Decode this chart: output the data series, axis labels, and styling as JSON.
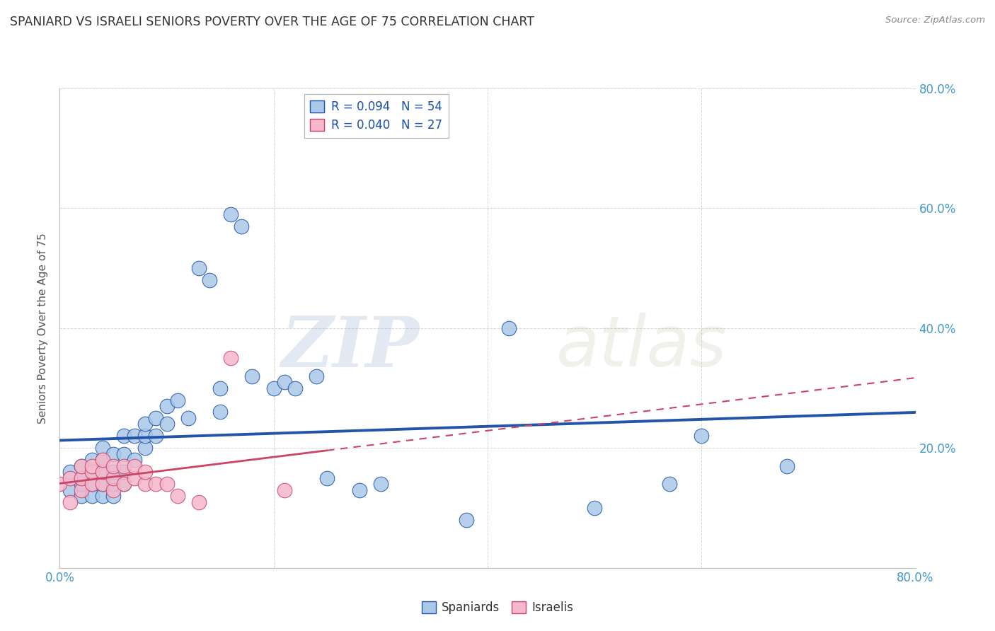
{
  "title": "SPANIARD VS ISRAELI SENIORS POVERTY OVER THE AGE OF 75 CORRELATION CHART",
  "source": "Source: ZipAtlas.com",
  "ylabel": "Seniors Poverty Over the Age of 75",
  "xlim": [
    0.0,
    0.8
  ],
  "ylim": [
    0.0,
    0.8
  ],
  "xticks": [
    0.0,
    0.2,
    0.4,
    0.6,
    0.8
  ],
  "yticks": [
    0.0,
    0.2,
    0.4,
    0.6,
    0.8
  ],
  "xticklabels": [
    "0.0%",
    "",
    "",
    "",
    "80.0%"
  ],
  "right_yticklabels": [
    "",
    "20.0%",
    "40.0%",
    "60.0%",
    "80.0%"
  ],
  "watermark_zip": "ZIP",
  "watermark_atlas": "atlas",
  "legend_r1": "R = 0.094",
  "legend_n1": "N = 54",
  "legend_r2": "R = 0.040",
  "legend_n2": "N = 27",
  "color_spanish": "#aac8e8",
  "color_israeli": "#f5b8cc",
  "color_line_spanish": "#2255aa",
  "color_line_israeli": "#cc4466",
  "spaniards_x": [
    0.01,
    0.01,
    0.02,
    0.02,
    0.02,
    0.02,
    0.03,
    0.03,
    0.03,
    0.03,
    0.04,
    0.04,
    0.04,
    0.04,
    0.04,
    0.05,
    0.05,
    0.05,
    0.05,
    0.06,
    0.06,
    0.06,
    0.06,
    0.07,
    0.07,
    0.08,
    0.08,
    0.08,
    0.09,
    0.09,
    0.1,
    0.1,
    0.11,
    0.12,
    0.13,
    0.14,
    0.15,
    0.15,
    0.16,
    0.17,
    0.18,
    0.2,
    0.21,
    0.22,
    0.24,
    0.25,
    0.28,
    0.3,
    0.38,
    0.42,
    0.5,
    0.57,
    0.6,
    0.68
  ],
  "spaniards_y": [
    0.13,
    0.16,
    0.12,
    0.14,
    0.15,
    0.17,
    0.12,
    0.14,
    0.16,
    0.18,
    0.12,
    0.14,
    0.16,
    0.18,
    0.2,
    0.12,
    0.14,
    0.16,
    0.19,
    0.14,
    0.16,
    0.19,
    0.22,
    0.18,
    0.22,
    0.2,
    0.22,
    0.24,
    0.22,
    0.25,
    0.24,
    0.27,
    0.28,
    0.25,
    0.5,
    0.48,
    0.3,
    0.26,
    0.59,
    0.57,
    0.32,
    0.3,
    0.31,
    0.3,
    0.32,
    0.15,
    0.13,
    0.14,
    0.08,
    0.4,
    0.1,
    0.14,
    0.22,
    0.17
  ],
  "israelis_x": [
    0.0,
    0.01,
    0.01,
    0.02,
    0.02,
    0.02,
    0.03,
    0.03,
    0.03,
    0.04,
    0.04,
    0.04,
    0.05,
    0.05,
    0.05,
    0.06,
    0.06,
    0.07,
    0.07,
    0.08,
    0.08,
    0.09,
    0.1,
    0.11,
    0.13,
    0.16,
    0.21
  ],
  "israelis_y": [
    0.14,
    0.11,
    0.15,
    0.13,
    0.15,
    0.17,
    0.14,
    0.16,
    0.17,
    0.14,
    0.16,
    0.18,
    0.13,
    0.15,
    0.17,
    0.14,
    0.17,
    0.15,
    0.17,
    0.14,
    0.16,
    0.14,
    0.14,
    0.12,
    0.11,
    0.35,
    0.13
  ],
  "background_color": "#ffffff",
  "grid_color": "#cccccc",
  "title_color": "#333333",
  "source_color": "#888888",
  "tick_color": "#4499cc"
}
